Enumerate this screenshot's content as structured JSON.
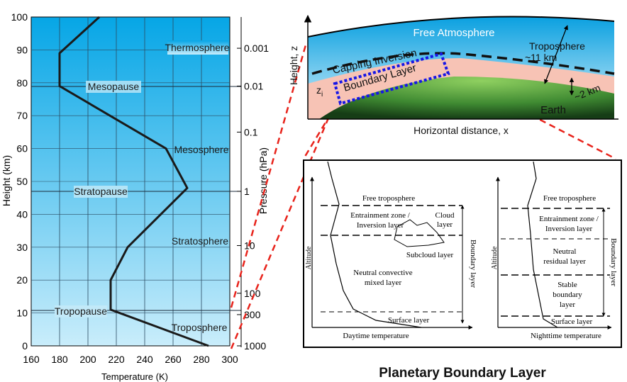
{
  "atmosphere_profile": {
    "y_axis_label": "Height (km)",
    "x_axis_label": "Temperature (K)",
    "right_axis_label": "Pressure (hPa)",
    "x_ticks": [
      "160",
      "180",
      "200",
      "220",
      "240",
      "260",
      "280",
      "300"
    ],
    "y_ticks": [
      "0",
      "10",
      "20",
      "30",
      "40",
      "50",
      "60",
      "70",
      "80",
      "90",
      "100"
    ],
    "pressure_ticks": [
      "0.001",
      "0.01",
      "0.1",
      "1",
      "10",
      "100",
      "300",
      "1000"
    ],
    "layers": {
      "thermosphere": "Thermosphere",
      "mesopause": "Mesopause",
      "mesosphere": "Mesosphere",
      "stratopause": "Stratopause",
      "stratosphere": "Stratosphere",
      "tropopause": "Tropopause",
      "troposphere": "Troposphere"
    },
    "profile": {
      "x": [
        285,
        216,
        216,
        228,
        270,
        255,
        180,
        180,
        208
      ],
      "y": [
        0,
        11,
        20,
        30,
        48,
        60,
        79,
        89,
        100
      ],
      "x_range": [
        160,
        300
      ],
      "y_range": [
        0,
        100
      ]
    }
  },
  "cross_section": {
    "free_atmosphere": "Free Atmosphere",
    "capping_inversion": "Capping Inversion",
    "boundary_layer": "Boundary Layer",
    "troposphere": "Troposphere",
    "troposphere_height": "~11 km",
    "bl_depth": "~2 km",
    "earth": "Earth",
    "zi": "z",
    "zi_sub": "i",
    "height_axis": "Height, z",
    "distance_axis": "Horizontal distance, x"
  },
  "daytime_panel": {
    "free_troposphere": "Free troposphere",
    "entrainment": [
      "Entrainment zone /",
      "Inversion layer"
    ],
    "cloud": [
      "Cloud",
      "layer"
    ],
    "subcloud": "Subcloud layer",
    "mixed": [
      "Neutral convective",
      "mixed layer"
    ],
    "surface": "Surface layer",
    "boundary_layer": "Boundary layer",
    "y_label": "Altitude",
    "x_label": "Daytime temperature"
  },
  "nighttime_panel": {
    "free_troposphere": "Free troposphere",
    "entrainment": [
      "Entrainment zone /",
      "Inversion layer"
    ],
    "residual": [
      "Neutral",
      "residual layer"
    ],
    "stable": [
      "Stable",
      "boundary",
      "layer"
    ],
    "surface": "Surface layer",
    "boundary_layer": "Boundary layer",
    "y_label": "Altitude",
    "x_label": "Nighttime temperature"
  },
  "caption": "Planetary Boundary Layer",
  "colors": {
    "sky_top": "#06a6e6",
    "sky_bottom": "#c9edfb",
    "bl_pink": "#f7c3b5",
    "earth_dark": "#1c4a1c",
    "earth_light": "#7fbf55",
    "dash_red": "#e8231b",
    "dash_blue": "#1616e6"
  }
}
